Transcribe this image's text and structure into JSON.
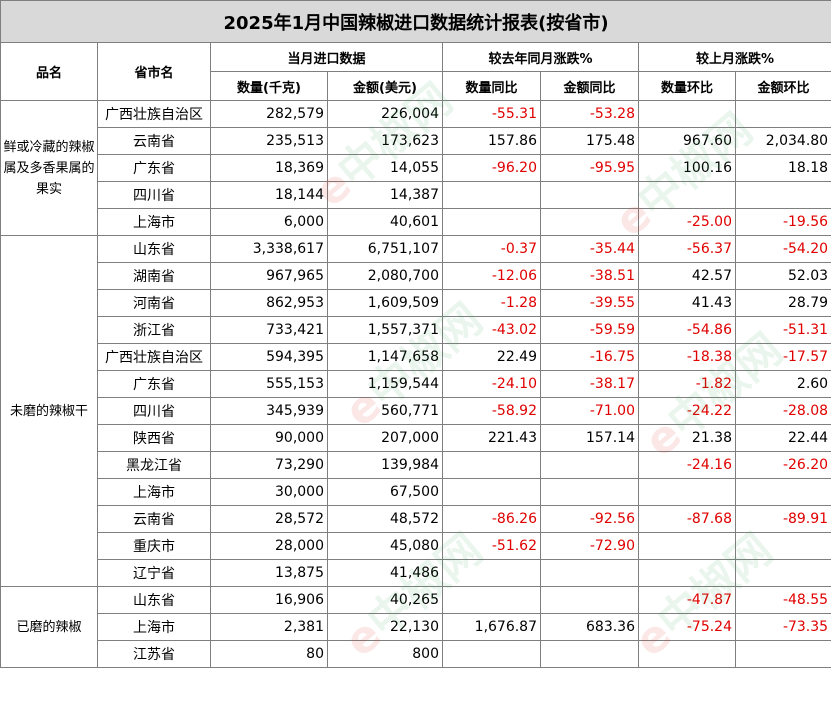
{
  "title": "2025年1月中国辣椒进口数据统计报表(按省市)",
  "headers": {
    "product": "品名",
    "province": "省市名",
    "current": "当月进口数据",
    "yoy": "较去年同月涨跌%",
    "mom": "较上月涨跌%",
    "qty": "数量(千克)",
    "amt": "金额(美元)",
    "qty_yoy": "数量同比",
    "amt_yoy": "金额同比",
    "qty_mom": "数量环比",
    "amt_mom": "金额环比"
  },
  "watermark": {
    "e": "e",
    "text": "中椒网"
  },
  "groups": [
    {
      "name": "鲜或冷藏的辣椒属及多香果属的果实",
      "rows": [
        {
          "province": "广西壮族自治区",
          "qty": "282,579",
          "amt": "226,004",
          "qty_yoy": "-55.31",
          "amt_yoy": "-53.28",
          "qty_mom": "",
          "amt_mom": ""
        },
        {
          "province": "云南省",
          "qty": "235,513",
          "amt": "173,623",
          "qty_yoy": "157.86",
          "amt_yoy": "175.48",
          "qty_mom": "967.60",
          "amt_mom": "2,034.80"
        },
        {
          "province": "广东省",
          "qty": "18,369",
          "amt": "14,055",
          "qty_yoy": "-96.20",
          "amt_yoy": "-95.95",
          "qty_mom": "100.16",
          "amt_mom": "18.18"
        },
        {
          "province": "四川省",
          "qty": "18,144",
          "amt": "14,387",
          "qty_yoy": "",
          "amt_yoy": "",
          "qty_mom": "",
          "amt_mom": ""
        },
        {
          "province": "上海市",
          "qty": "6,000",
          "amt": "40,601",
          "qty_yoy": "",
          "amt_yoy": "",
          "qty_mom": "-25.00",
          "amt_mom": "-19.56"
        }
      ]
    },
    {
      "name": "未磨的辣椒干",
      "rows": [
        {
          "province": "山东省",
          "qty": "3,338,617",
          "amt": "6,751,107",
          "qty_yoy": "-0.37",
          "amt_yoy": "-35.44",
          "qty_mom": "-56.37",
          "amt_mom": "-54.20"
        },
        {
          "province": "湖南省",
          "qty": "967,965",
          "amt": "2,080,700",
          "qty_yoy": "-12.06",
          "amt_yoy": "-38.51",
          "qty_mom": "42.57",
          "amt_mom": "52.03"
        },
        {
          "province": "河南省",
          "qty": "862,953",
          "amt": "1,609,509",
          "qty_yoy": "-1.28",
          "amt_yoy": "-39.55",
          "qty_mom": "41.43",
          "amt_mom": "28.79"
        },
        {
          "province": "浙江省",
          "qty": "733,421",
          "amt": "1,557,371",
          "qty_yoy": "-43.02",
          "amt_yoy": "-59.59",
          "qty_mom": "-54.86",
          "amt_mom": "-51.31"
        },
        {
          "province": "广西壮族自治区",
          "qty": "594,395",
          "amt": "1,147,658",
          "qty_yoy": "22.49",
          "amt_yoy": "-16.75",
          "qty_mom": "-18.38",
          "amt_mom": "-17.57"
        },
        {
          "province": "广东省",
          "qty": "555,153",
          "amt": "1,159,544",
          "qty_yoy": "-24.10",
          "amt_yoy": "-38.17",
          "qty_mom": "-1.82",
          "amt_mom": "2.60"
        },
        {
          "province": "四川省",
          "qty": "345,939",
          "amt": "560,771",
          "qty_yoy": "-58.92",
          "amt_yoy": "-71.00",
          "qty_mom": "-24.22",
          "amt_mom": "-28.08"
        },
        {
          "province": "陕西省",
          "qty": "90,000",
          "amt": "207,000",
          "qty_yoy": "221.43",
          "amt_yoy": "157.14",
          "qty_mom": "21.38",
          "amt_mom": "22.44"
        },
        {
          "province": "黑龙江省",
          "qty": "73,290",
          "amt": "139,984",
          "qty_yoy": "",
          "amt_yoy": "",
          "qty_mom": "-24.16",
          "amt_mom": "-26.20"
        },
        {
          "province": "上海市",
          "qty": "30,000",
          "amt": "67,500",
          "qty_yoy": "",
          "amt_yoy": "",
          "qty_mom": "",
          "amt_mom": ""
        },
        {
          "province": "云南省",
          "qty": "28,572",
          "amt": "48,572",
          "qty_yoy": "-86.26",
          "amt_yoy": "-92.56",
          "qty_mom": "-87.68",
          "amt_mom": "-89.91"
        },
        {
          "province": "重庆市",
          "qty": "28,000",
          "amt": "45,080",
          "qty_yoy": "-51.62",
          "amt_yoy": "-72.90",
          "qty_mom": "",
          "amt_mom": ""
        },
        {
          "province": "辽宁省",
          "qty": "13,875",
          "amt": "41,486",
          "qty_yoy": "",
          "amt_yoy": "",
          "qty_mom": "",
          "amt_mom": ""
        }
      ]
    },
    {
      "name": "已磨的辣椒",
      "rows": [
        {
          "province": "山东省",
          "qty": "16,906",
          "amt": "40,265",
          "qty_yoy": "",
          "amt_yoy": "",
          "qty_mom": "-47.87",
          "amt_mom": "-48.55"
        },
        {
          "province": "上海市",
          "qty": "2,381",
          "amt": "22,130",
          "qty_yoy": "1,676.87",
          "amt_yoy": "683.36",
          "qty_mom": "-75.24",
          "amt_mom": "-73.35"
        },
        {
          "province": "江苏省",
          "qty": "80",
          "amt": "800",
          "qty_yoy": "",
          "amt_yoy": "",
          "qty_mom": "",
          "amt_mom": ""
        }
      ]
    }
  ]
}
